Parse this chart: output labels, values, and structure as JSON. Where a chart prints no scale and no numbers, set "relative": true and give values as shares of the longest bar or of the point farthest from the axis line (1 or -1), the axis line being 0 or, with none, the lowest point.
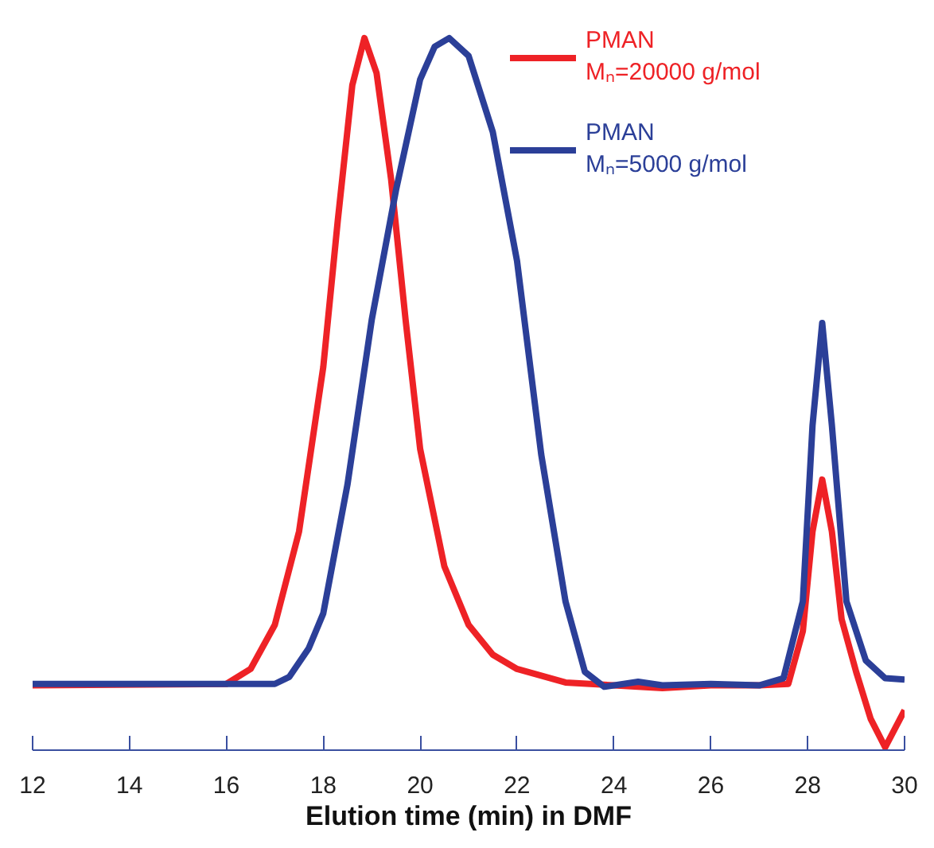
{
  "chart_data": {
    "type": "line",
    "relative": true,
    "xlabel": "Elution time (min) in DMF",
    "xlim": [
      12,
      30
    ],
    "xticks": [
      12,
      14,
      16,
      18,
      20,
      22,
      24,
      26,
      28,
      30
    ],
    "grid": false,
    "legend": "top right",
    "tick_labels": "x",
    "line_style": "solid",
    "marker": "none",
    "series": [
      {
        "name": "PMAN\nMₙ=20000 g/mol",
        "color": "#ee2226",
        "x": [
          12,
          16,
          16.5,
          17,
          17.5,
          18,
          18.3,
          18.6,
          18.85,
          19.1,
          19.4,
          19.7,
          20,
          20.5,
          21,
          21.5,
          22,
          23,
          24,
          25,
          26,
          27,
          27.6,
          27.9,
          28.1,
          28.3,
          28.5,
          28.7,
          29,
          29.3,
          29.6,
          30
        ],
        "values": [
          0.091,
          0.093,
          0.114,
          0.176,
          0.307,
          0.538,
          0.744,
          0.934,
          1.0,
          0.951,
          0.802,
          0.604,
          0.423,
          0.258,
          0.176,
          0.134,
          0.114,
          0.095,
          0.091,
          0.087,
          0.091,
          0.091,
          0.093,
          0.167,
          0.307,
          0.38,
          0.307,
          0.184,
          0.11,
          0.044,
          0.004,
          0.056
        ]
      },
      {
        "name": "PMAN\nMₙ=5000 g/mol",
        "color": "#2b3f98",
        "x": [
          12,
          17,
          17.3,
          17.7,
          18,
          18.5,
          19,
          19.5,
          20,
          20.3,
          20.6,
          21,
          21.5,
          22,
          22.5,
          23,
          23.4,
          23.8,
          24.5,
          25,
          26,
          27,
          27.5,
          27.9,
          28.1,
          28.3,
          28.5,
          28.8,
          29.2,
          29.6,
          30
        ],
        "values": [
          0.093,
          0.093,
          0.103,
          0.143,
          0.192,
          0.373,
          0.604,
          0.786,
          0.942,
          0.988,
          1.0,
          0.975,
          0.868,
          0.687,
          0.415,
          0.209,
          0.11,
          0.089,
          0.096,
          0.091,
          0.093,
          0.091,
          0.101,
          0.209,
          0.456,
          0.6,
          0.456,
          0.209,
          0.126,
          0.101,
          0.099
        ]
      }
    ]
  }
}
